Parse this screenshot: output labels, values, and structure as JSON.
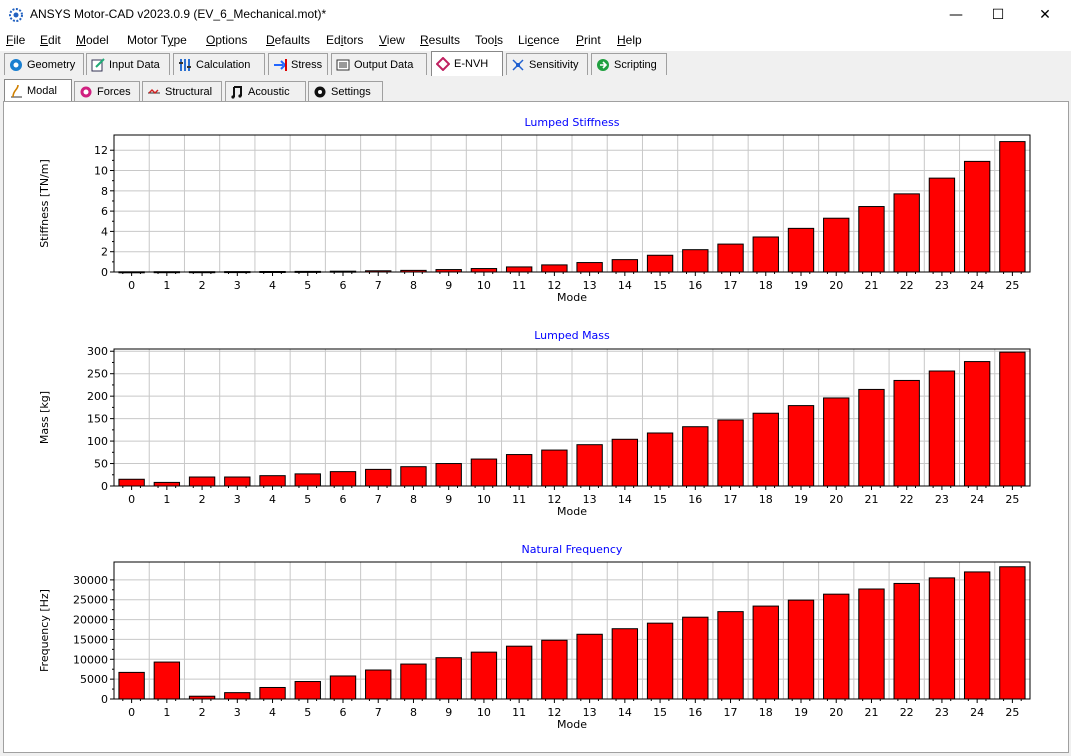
{
  "window": {
    "title": "ANSYS Motor-CAD v2023.0.9 (EV_6_Mechanical.mot)*"
  },
  "controls": {
    "minimize": "—",
    "maximize": "☐",
    "close": "✕"
  },
  "menu": [
    {
      "pre": "",
      "u": "F",
      "post": "ile"
    },
    {
      "pre": "",
      "u": "E",
      "post": "dit"
    },
    {
      "pre": "",
      "u": "M",
      "post": "odel"
    },
    {
      "pre": "Motor T",
      "u": "y",
      "post": "pe"
    },
    {
      "pre": "",
      "u": "O",
      "post": "ptions"
    },
    {
      "pre": "",
      "u": "D",
      "post": "efaults"
    },
    {
      "pre": "Ed",
      "u": "i",
      "post": "tors"
    },
    {
      "pre": "",
      "u": "V",
      "post": "iew"
    },
    {
      "pre": "",
      "u": "R",
      "post": "esults"
    },
    {
      "pre": "Too",
      "u": "l",
      "post": "s"
    },
    {
      "pre": "Li",
      "u": "c",
      "post": "ence"
    },
    {
      "pre": "",
      "u": "P",
      "post": "rint"
    },
    {
      "pre": "",
      "u": "H",
      "post": "elp"
    }
  ],
  "main_tabs": [
    "Geometry",
    "Input Data",
    "Calculation",
    "Stress",
    "Output Data",
    "E-NVH",
    "Sensitivity",
    "Scripting"
  ],
  "main_tab_icons": [
    "geometry-icon",
    "input-data-icon",
    "calculation-icon",
    "stress-icon",
    "output-data-icon",
    "envh-icon",
    "sensitivity-icon",
    "scripting-icon"
  ],
  "active_main_tab": "E-NVH",
  "sub_tabs": [
    "Modal",
    "Forces",
    "Structural",
    "Acoustic",
    "Settings"
  ],
  "sub_tab_icons": [
    "modal-icon",
    "forces-icon",
    "structural-icon",
    "acoustic-icon",
    "settings-icon"
  ],
  "active_sub_tab": "Modal",
  "colors": {
    "bar": "#ff0000",
    "title_text": "#0000ff",
    "grid": "#c8c8c8"
  },
  "chart_data": [
    {
      "type": "bar",
      "title": "Lumped Stiffness",
      "xlabel": "Mode",
      "ylabel": "Stiffness [TN/m]",
      "categories": [
        "0",
        "1",
        "2",
        "3",
        "4",
        "5",
        "6",
        "7",
        "8",
        "9",
        "10",
        "11",
        "12",
        "13",
        "14",
        "15",
        "16",
        "17",
        "18",
        "19",
        "20",
        "21",
        "22",
        "23",
        "24",
        "25"
      ],
      "values": [
        0.02,
        0.03,
        0.03,
        0.04,
        0.05,
        0.06,
        0.08,
        0.12,
        0.16,
        0.24,
        0.34,
        0.5,
        0.7,
        0.93,
        1.22,
        1.65,
        2.2,
        2.75,
        3.45,
        4.3,
        5.3,
        6.45,
        7.7,
        9.25,
        10.9,
        12.85
      ],
      "ylim": [
        0,
        13.5
      ],
      "yticks": [
        0,
        2,
        4,
        6,
        8,
        10,
        12
      ],
      "grid": true
    },
    {
      "type": "bar",
      "title": "Lumped Mass",
      "xlabel": "Mode",
      "ylabel": "Mass [kg]",
      "categories": [
        "0",
        "1",
        "2",
        "3",
        "4",
        "5",
        "6",
        "7",
        "8",
        "9",
        "10",
        "11",
        "12",
        "13",
        "14",
        "15",
        "16",
        "17",
        "18",
        "19",
        "20",
        "21",
        "22",
        "23",
        "24",
        "25"
      ],
      "values": [
        15,
        8,
        20,
        20,
        23,
        27,
        32,
        37,
        43,
        50,
        60,
        70,
        80,
        92,
        104,
        118,
        132,
        147,
        162,
        179,
        196,
        215,
        235,
        256,
        277,
        298
      ],
      "ylim": [
        0,
        305
      ],
      "yticks": [
        0,
        50,
        100,
        150,
        200,
        250,
        300
      ],
      "grid": true
    },
    {
      "type": "bar",
      "title": "Natural Frequency",
      "xlabel": "Mode",
      "ylabel": "Frequency [Hz]",
      "categories": [
        "0",
        "1",
        "2",
        "3",
        "4",
        "5",
        "6",
        "7",
        "8",
        "9",
        "10",
        "11",
        "12",
        "13",
        "14",
        "15",
        "16",
        "17",
        "18",
        "19",
        "20",
        "21",
        "22",
        "23",
        "24",
        "25"
      ],
      "values": [
        6700,
        9300,
        700,
        1600,
        2900,
        4400,
        5800,
        7300,
        8800,
        10400,
        11800,
        13300,
        14800,
        16300,
        17700,
        19100,
        20600,
        22000,
        23400,
        24900,
        26400,
        27700,
        29100,
        30500,
        32000,
        33300
      ],
      "ylim": [
        0,
        34500
      ],
      "yticks": [
        0,
        5000,
        10000,
        15000,
        20000,
        25000,
        30000
      ],
      "grid": true
    }
  ]
}
